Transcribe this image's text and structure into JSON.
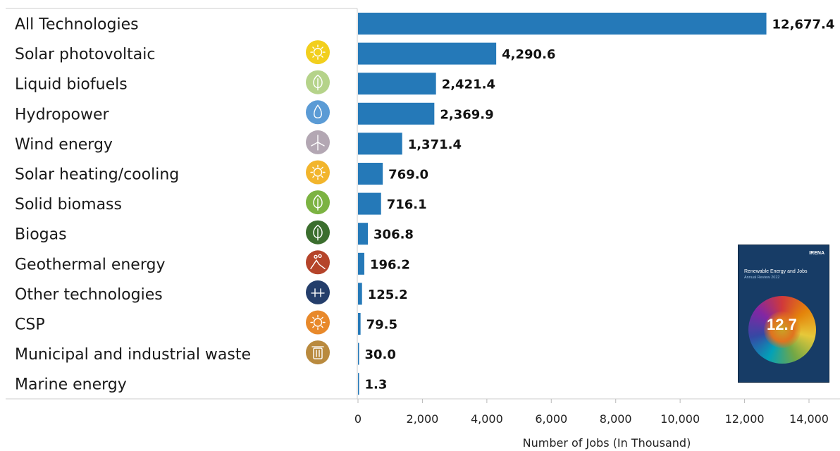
{
  "chart_data": {
    "type": "bar",
    "orientation": "horizontal",
    "categories": [
      "All Technologies",
      "Solar photovoltaic",
      "Liquid biofuels",
      "Hydropower",
      "Wind energy",
      "Solar heating/cooling",
      "Solid biomass",
      "Biogas",
      "Geothermal energy",
      "Other technologies",
      "CSP",
      "Municipal and industrial waste",
      "Marine energy"
    ],
    "values": [
      12677.4,
      4290.6,
      2421.4,
      2369.9,
      1371.4,
      769.0,
      716.1,
      306.8,
      196.2,
      125.2,
      79.5,
      30.0,
      1.3
    ],
    "value_labels": [
      "12,677.4",
      "4,290.6",
      "2,421.4",
      "2,369.9",
      "1,371.4",
      "769.0",
      "716.1",
      "306.8",
      "196.2",
      "125.2",
      "79.5",
      "30.0",
      "1.3"
    ],
    "xlabel": "Number of Jobs (In Thousand)",
    "xlim": [
      0,
      14000
    ],
    "xticks": [
      0,
      2000,
      4000,
      6000,
      8000,
      10000,
      12000,
      14000
    ],
    "xtick_labels": [
      "0",
      "2,000",
      "4,000",
      "6,000",
      "8,000",
      "10,000",
      "12,000",
      "14,000"
    ],
    "grid": false,
    "bar_color": "#2579b8",
    "icons": [
      null,
      {
        "name": "sun-icon",
        "color": "#f2cf1d"
      },
      {
        "name": "leaf-icon",
        "color": "#b5d38a"
      },
      {
        "name": "water-drop-icon",
        "color": "#5b9bd5"
      },
      {
        "name": "wind-turbine-icon",
        "color": "#b3a7b3"
      },
      {
        "name": "sun-icon",
        "color": "#f2b52c"
      },
      {
        "name": "leaf-icon",
        "color": "#7cb342"
      },
      {
        "name": "leaf-icon",
        "color": "#3b6e2e"
      },
      {
        "name": "geothermal-icon",
        "color": "#b5442a"
      },
      {
        "name": "other-tech-icon",
        "color": "#243e6b"
      },
      {
        "name": "sun-icon",
        "color": "#e8892b"
      },
      {
        "name": "waste-bin-icon",
        "color": "#b98a3e"
      },
      null
    ]
  },
  "report_cover": {
    "brand": "IRENA",
    "title": "Renewable Energy and Jobs",
    "subtitle": "Annual Review 2022",
    "headline": "12.7"
  }
}
